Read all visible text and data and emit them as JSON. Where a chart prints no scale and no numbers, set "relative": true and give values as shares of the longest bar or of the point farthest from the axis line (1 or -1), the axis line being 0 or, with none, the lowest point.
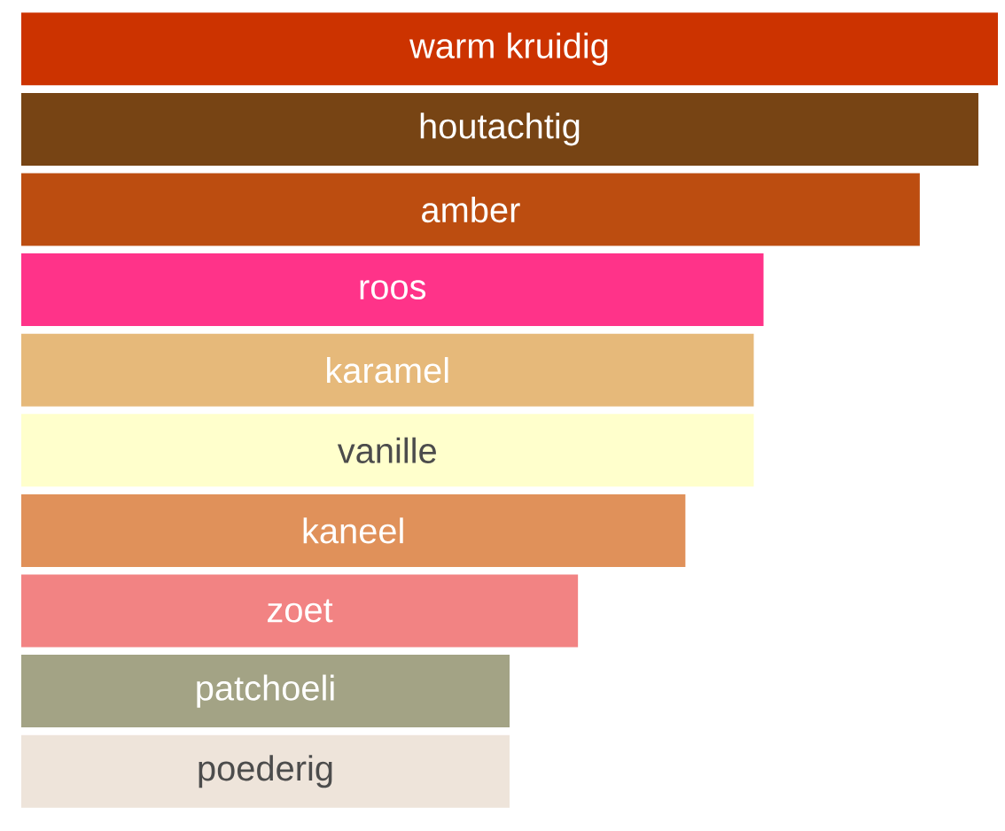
{
  "chart_data": {
    "type": "bar",
    "orientation": "horizontal",
    "relative": true,
    "categories": [
      "warm kruidig",
      "houtachtig",
      "amber",
      "roos",
      "karamel",
      "vanille",
      "kaneel",
      "zoet",
      "patchoeli",
      "poederig"
    ],
    "values": [
      1,
      0.98,
      0.92,
      0.76,
      0.75,
      0.75,
      0.68,
      0.57,
      0.5,
      0.5
    ],
    "colors": [
      "#cc3300",
      "#774414",
      "#bc4d10",
      "#ff3389",
      "#e6b97a",
      "#ffffcc",
      "#e0915a",
      "#f28383",
      "#a3a385",
      "#eee4da"
    ]
  }
}
